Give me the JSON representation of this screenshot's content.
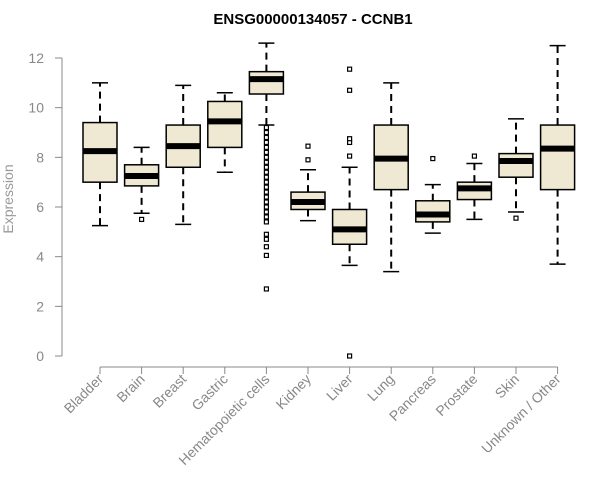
{
  "chart_data": {
    "type": "boxplot",
    "title": "ENSG00000134057 - CCNB1",
    "ylabel": "Expression",
    "xlabel": "",
    "ylim": [
      0,
      12.5
    ],
    "yticks": [
      0,
      2,
      4,
      6,
      8,
      10,
      12
    ],
    "grid": false,
    "legend": "none",
    "colors": {
      "box_fill": "#efe9d3",
      "stroke": "#000000",
      "axis": "#888888",
      "text": "#888888"
    },
    "categories": [
      "Bladder",
      "Brain",
      "Breast",
      "Gastric",
      "Hematopoietic cells",
      "Kidney",
      "Liver",
      "Lung",
      "Pancreas",
      "Prostate",
      "Skin",
      "Unknown / Other"
    ],
    "boxes": [
      {
        "category": "Bladder",
        "whisker_low": 5.25,
        "q1": 7.0,
        "median": 8.25,
        "q3": 9.4,
        "whisker_high": 11.0,
        "outliers": []
      },
      {
        "category": "Brain",
        "whisker_low": 5.75,
        "q1": 6.85,
        "median": 7.25,
        "q3": 7.7,
        "whisker_high": 8.4,
        "outliers": [
          5.5
        ]
      },
      {
        "category": "Breast",
        "whisker_low": 5.3,
        "q1": 7.6,
        "median": 8.45,
        "q3": 9.3,
        "whisker_high": 10.9,
        "outliers": []
      },
      {
        "category": "Gastric",
        "whisker_low": 7.4,
        "q1": 8.4,
        "median": 9.45,
        "q3": 10.25,
        "whisker_high": 10.6,
        "outliers": []
      },
      {
        "category": "Hematopoietic cells",
        "whisker_low": 9.3,
        "q1": 10.55,
        "median": 11.15,
        "q3": 11.45,
        "whisker_high": 12.6,
        "outliers": [
          9.2,
          9.0,
          8.8,
          8.6,
          8.4,
          8.2,
          8.0,
          7.8,
          7.6,
          7.4,
          7.2,
          7.0,
          6.8,
          6.6,
          6.4,
          6.2,
          6.0,
          5.8,
          5.6,
          5.4,
          4.9,
          4.7,
          4.4,
          4.05,
          2.7
        ]
      },
      {
        "category": "Kidney",
        "whisker_low": 5.45,
        "q1": 5.9,
        "median": 6.2,
        "q3": 6.6,
        "whisker_high": 7.5,
        "outliers": [
          7.9,
          8.45
        ]
      },
      {
        "category": "Liver",
        "whisker_low": 3.65,
        "q1": 4.5,
        "median": 5.1,
        "q3": 5.9,
        "whisker_high": 7.6,
        "outliers": [
          8.05,
          8.6,
          8.75,
          10.7,
          11.55,
          0.0
        ]
      },
      {
        "category": "Lung",
        "whisker_low": 3.4,
        "q1": 6.7,
        "median": 7.95,
        "q3": 9.3,
        "whisker_high": 11.0,
        "outliers": []
      },
      {
        "category": "Pancreas",
        "whisker_low": 4.95,
        "q1": 5.4,
        "median": 5.7,
        "q3": 6.25,
        "whisker_high": 6.9,
        "outliers": [
          7.95
        ]
      },
      {
        "category": "Prostate",
        "whisker_low": 5.5,
        "q1": 6.3,
        "median": 6.75,
        "q3": 7.0,
        "whisker_high": 7.75,
        "outliers": [
          8.05
        ]
      },
      {
        "category": "Skin",
        "whisker_low": 5.8,
        "q1": 7.2,
        "median": 7.85,
        "q3": 8.15,
        "whisker_high": 9.55,
        "outliers": [
          5.55
        ]
      },
      {
        "category": "Unknown / Other",
        "whisker_low": 3.7,
        "q1": 6.7,
        "median": 8.35,
        "q3": 9.3,
        "whisker_high": 12.5,
        "outliers": []
      }
    ]
  }
}
